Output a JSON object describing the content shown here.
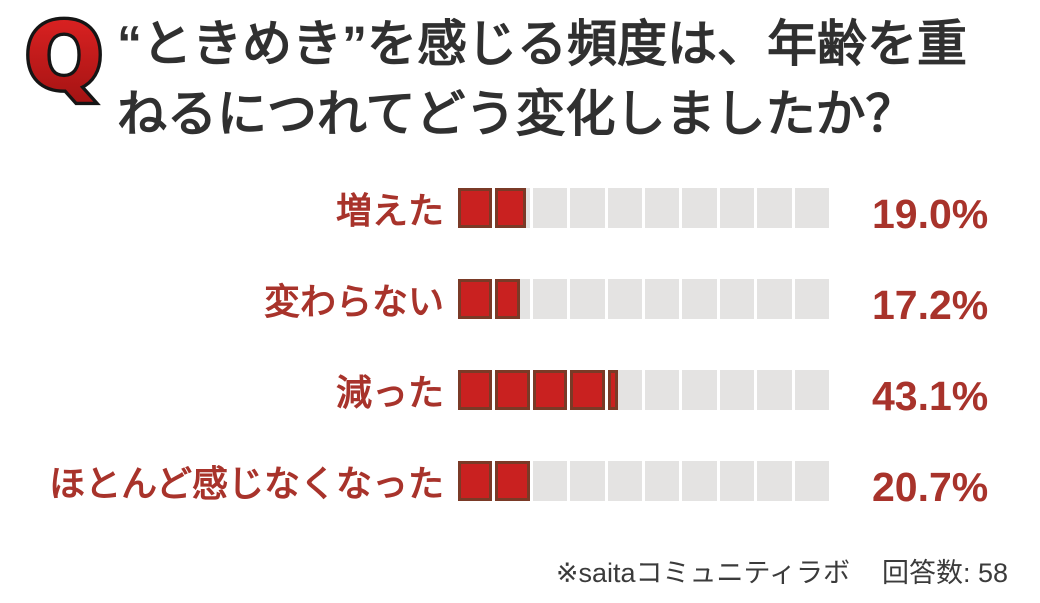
{
  "header": {
    "q_badge": "Q",
    "title_line1": "“ときめき”を感じる頻度は、年齢を重",
    "title_line2": "ねるにつれてどう変化しましたか？"
  },
  "chart_data": {
    "type": "bar",
    "orientation": "horizontal",
    "title": "“ときめき”を感じる頻度は、年齢を重ねるにつれてどう変化しましたか？",
    "categories": [
      "増えた",
      "変わらない",
      "減った",
      "ほとんど感じなくなった"
    ],
    "values": [
      19.0,
      17.2,
      43.1,
      20.7
    ],
    "value_labels": [
      "19.0%",
      "17.2%",
      "43.1%",
      "20.7%"
    ],
    "unit": "%",
    "xlim": [
      0,
      100
    ],
    "segments_per_bar": 10,
    "legend": "none",
    "grid": "off",
    "colors": {
      "bar_fill": "#c92120",
      "bar_border": "#7a3a27",
      "bar_track": "#e4e3e2",
      "label_text": "#a8332b",
      "title_text": "#303030",
      "q_fill_top": "#e32424",
      "q_fill_bottom": "#a01212",
      "q_outline": "#151515"
    }
  },
  "footer": {
    "source": "※saitaコミュニティラボ",
    "responses": "回答数: 58"
  }
}
